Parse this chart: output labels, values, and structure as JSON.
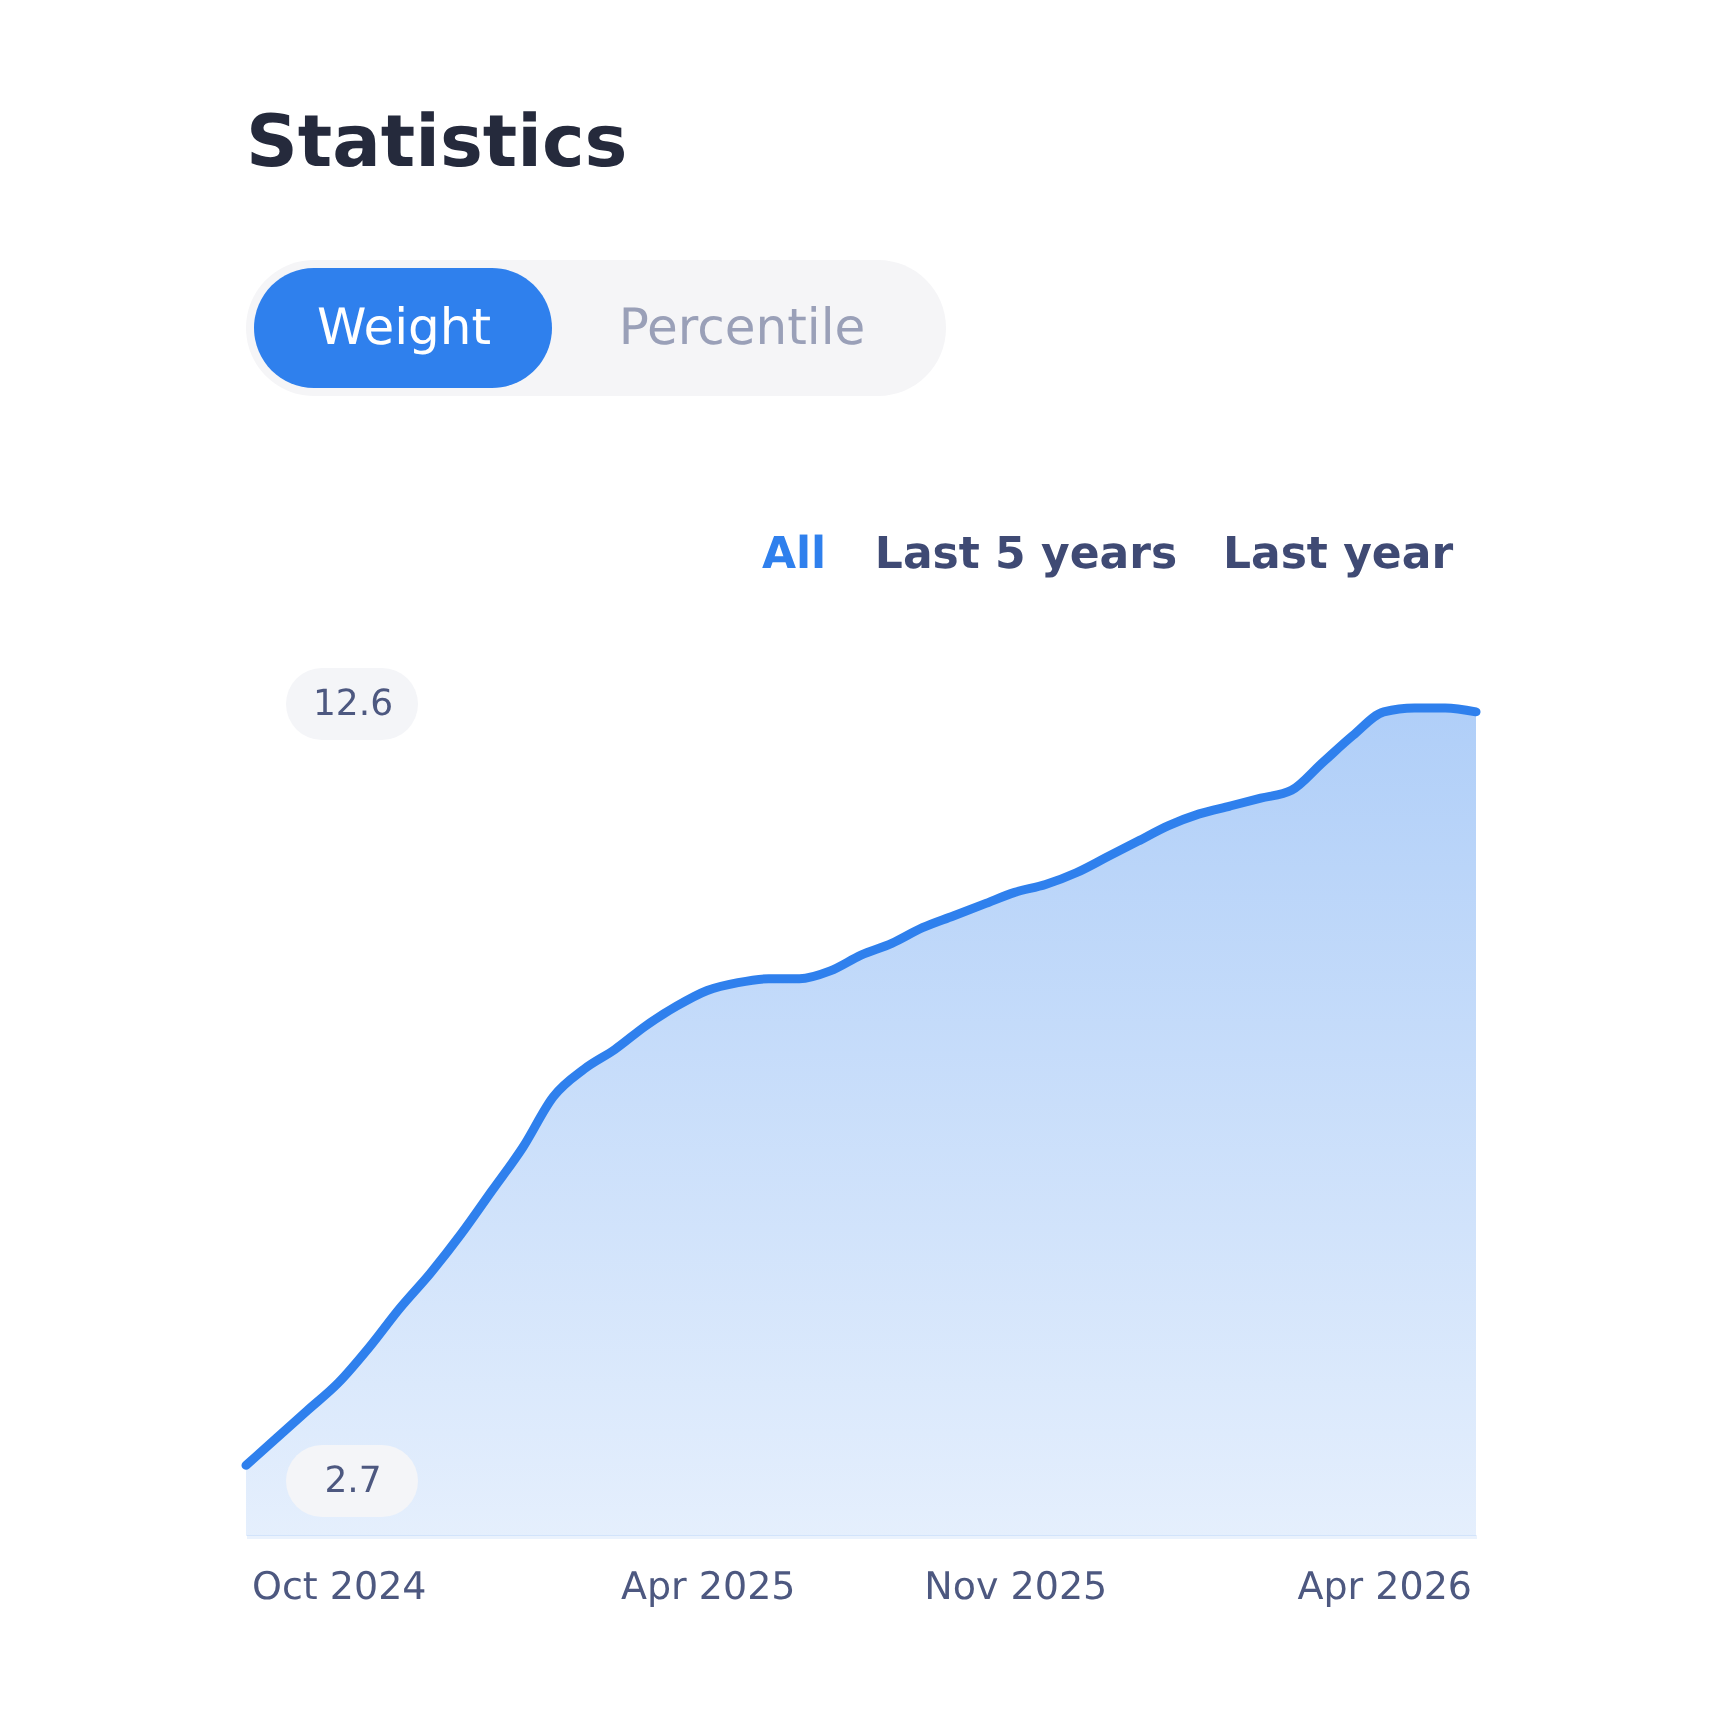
{
  "chart_data": {
    "type": "area",
    "title": "Statistics",
    "annotations": [
      "Weight",
      "Percentile",
      "All",
      "Last 5 years",
      "Last year"
    ],
    "categories": [
      null,
      null,
      null,
      "Oct 2024",
      null,
      null,
      null,
      null,
      null,
      null,
      null,
      null,
      null,
      null,
      null,
      "Apr 2025",
      null,
      null,
      null,
      null,
      null,
      null,
      null,
      null,
      null,
      "Nov 2025",
      null,
      null,
      null,
      null,
      null,
      null,
      null,
      null,
      null,
      null,
      null,
      "Apr 2026",
      null,
      null,
      null
    ],
    "series": [
      {
        "color": "#2f80ed",
        "values": [
          2.9,
          3.25,
          3.6,
          3.95,
          4.4,
          4.9,
          5.35,
          5.85,
          6.4,
          6.95,
          7.6,
          7.95,
          8.2,
          8.5,
          8.75,
          8.95,
          9.05,
          9.1,
          9.1,
          9.2,
          9.4,
          9.55,
          9.75,
          9.9,
          10.05,
          10.2,
          10.3,
          10.45,
          10.65,
          10.85,
          11.05,
          11.2,
          11.3,
          11.4,
          11.5,
          11.85,
          12.2,
          12.5,
          12.55,
          12.55,
          12.5
        ]
      }
    ],
    "ylim": [
      2.0,
      12.6
    ],
    "yticks": [
      2.7,
      12.6
    ],
    "grid": false
  }
}
